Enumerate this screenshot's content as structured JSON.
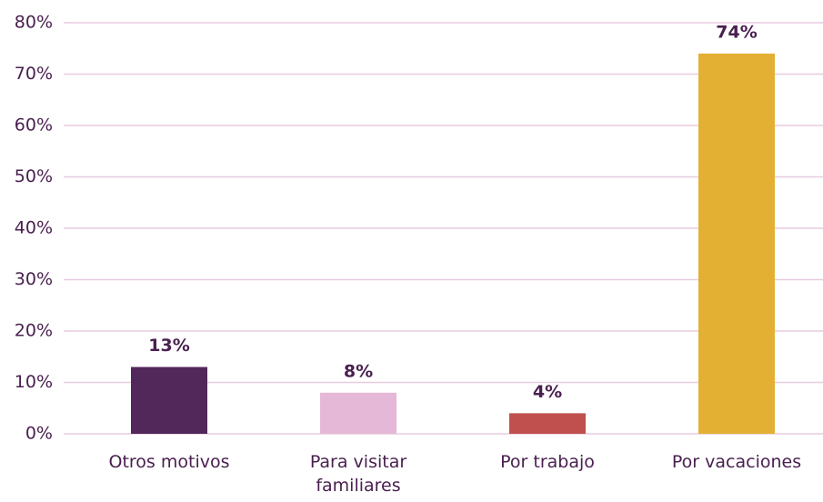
{
  "chart_data": {
    "type": "bar",
    "categories": [
      "Otros motivos",
      "Para visitar familiares",
      "Por trabajo",
      "Por vacaciones"
    ],
    "values": [
      13,
      8,
      4,
      74
    ],
    "value_labels": [
      "13%",
      "8%",
      "4%",
      "74%"
    ],
    "colors": [
      "#52285a",
      "#e4b8d6",
      "#c0504d",
      "#e3b033"
    ],
    "ylim": [
      0,
      80
    ],
    "yticks": [
      {
        "value": 0,
        "label": "0%"
      },
      {
        "value": 10,
        "label": "10%"
      },
      {
        "value": 20,
        "label": "20%"
      },
      {
        "value": 30,
        "label": "30%"
      },
      {
        "value": 40,
        "label": "40%"
      },
      {
        "value": 50,
        "label": "50%"
      },
      {
        "value": 60,
        "label": "60%"
      },
      {
        "value": 70,
        "label": "70%"
      },
      {
        "value": 80,
        "label": "80%"
      }
    ],
    "grid": true
  }
}
